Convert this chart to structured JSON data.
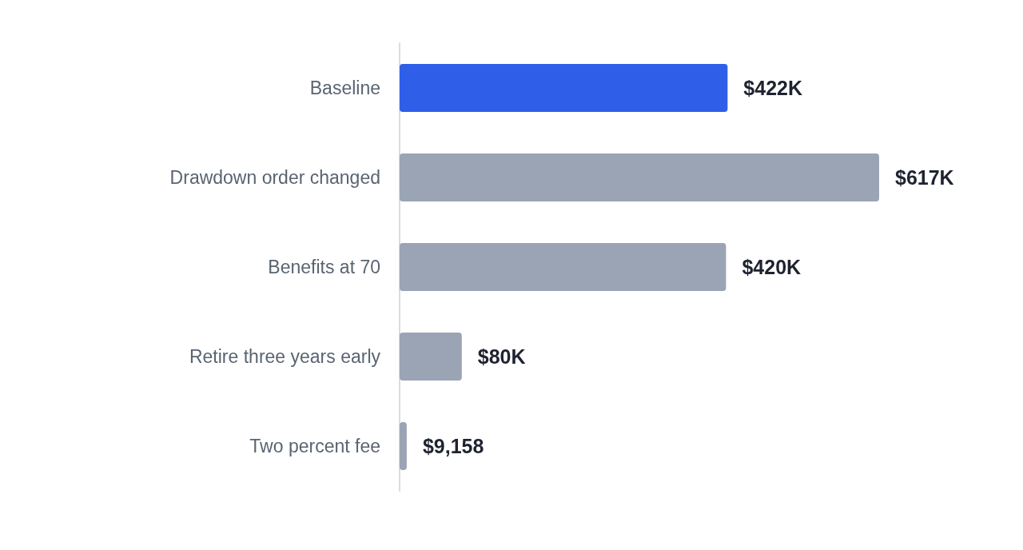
{
  "chart_data": {
    "type": "bar",
    "orientation": "horizontal",
    "categories": [
      "Baseline",
      "Drawdown order changed",
      "Benefits at 70",
      "Retire three years early",
      "Two percent fee"
    ],
    "values": [
      422000,
      617000,
      420000,
      80000,
      9158
    ],
    "colors": [
      "#2f5fe8",
      "#9aa4b5",
      "#9aa4b5",
      "#9aa4b5",
      "#9aa4b5"
    ],
    "value_labels": [
      "$422K",
      "$617K",
      "$420K",
      "$80K",
      "$9,158"
    ]
  }
}
